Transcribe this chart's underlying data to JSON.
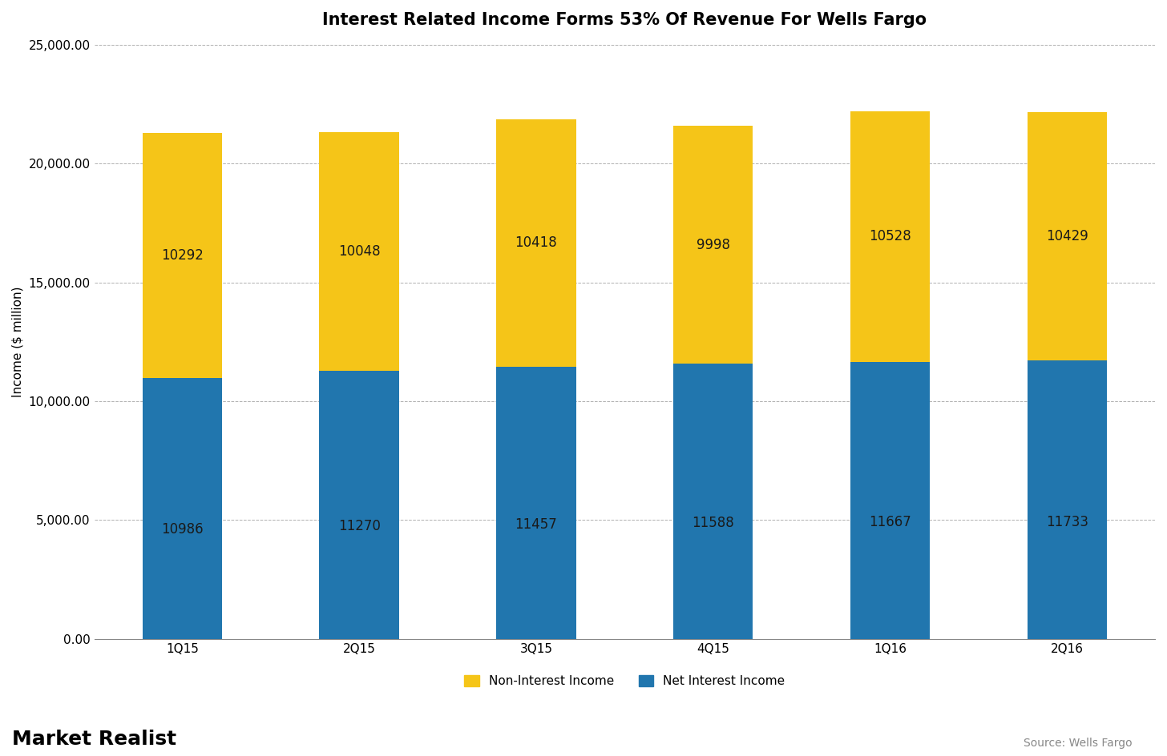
{
  "title": "Interest Related Income Forms 53% Of Revenue For Wells Fargo",
  "categories": [
    "1Q15",
    "2Q15",
    "3Q15",
    "4Q15",
    "1Q16",
    "2Q16"
  ],
  "net_interest_income": [
    10986,
    11270,
    11457,
    11588,
    11667,
    11733
  ],
  "non_interest_income": [
    10292,
    10048,
    10418,
    9998,
    10528,
    10429
  ],
  "net_interest_color": "#2176AE",
  "non_interest_color": "#F5C518",
  "ylabel": "Income ($ million)",
  "ylim": [
    0,
    25000
  ],
  "yticks": [
    0,
    5000,
    10000,
    15000,
    20000,
    25000
  ],
  "legend_labels": [
    "Non-Interest Income",
    "Net Interest Income"
  ],
  "source_text": "Source: Wells Fargo",
  "background_color": "#ffffff",
  "grid_color": "#b0b0b0",
  "title_fontsize": 15,
  "label_fontsize": 11,
  "tick_fontsize": 11,
  "bar_label_fontsize": 12,
  "bar_width": 0.45
}
